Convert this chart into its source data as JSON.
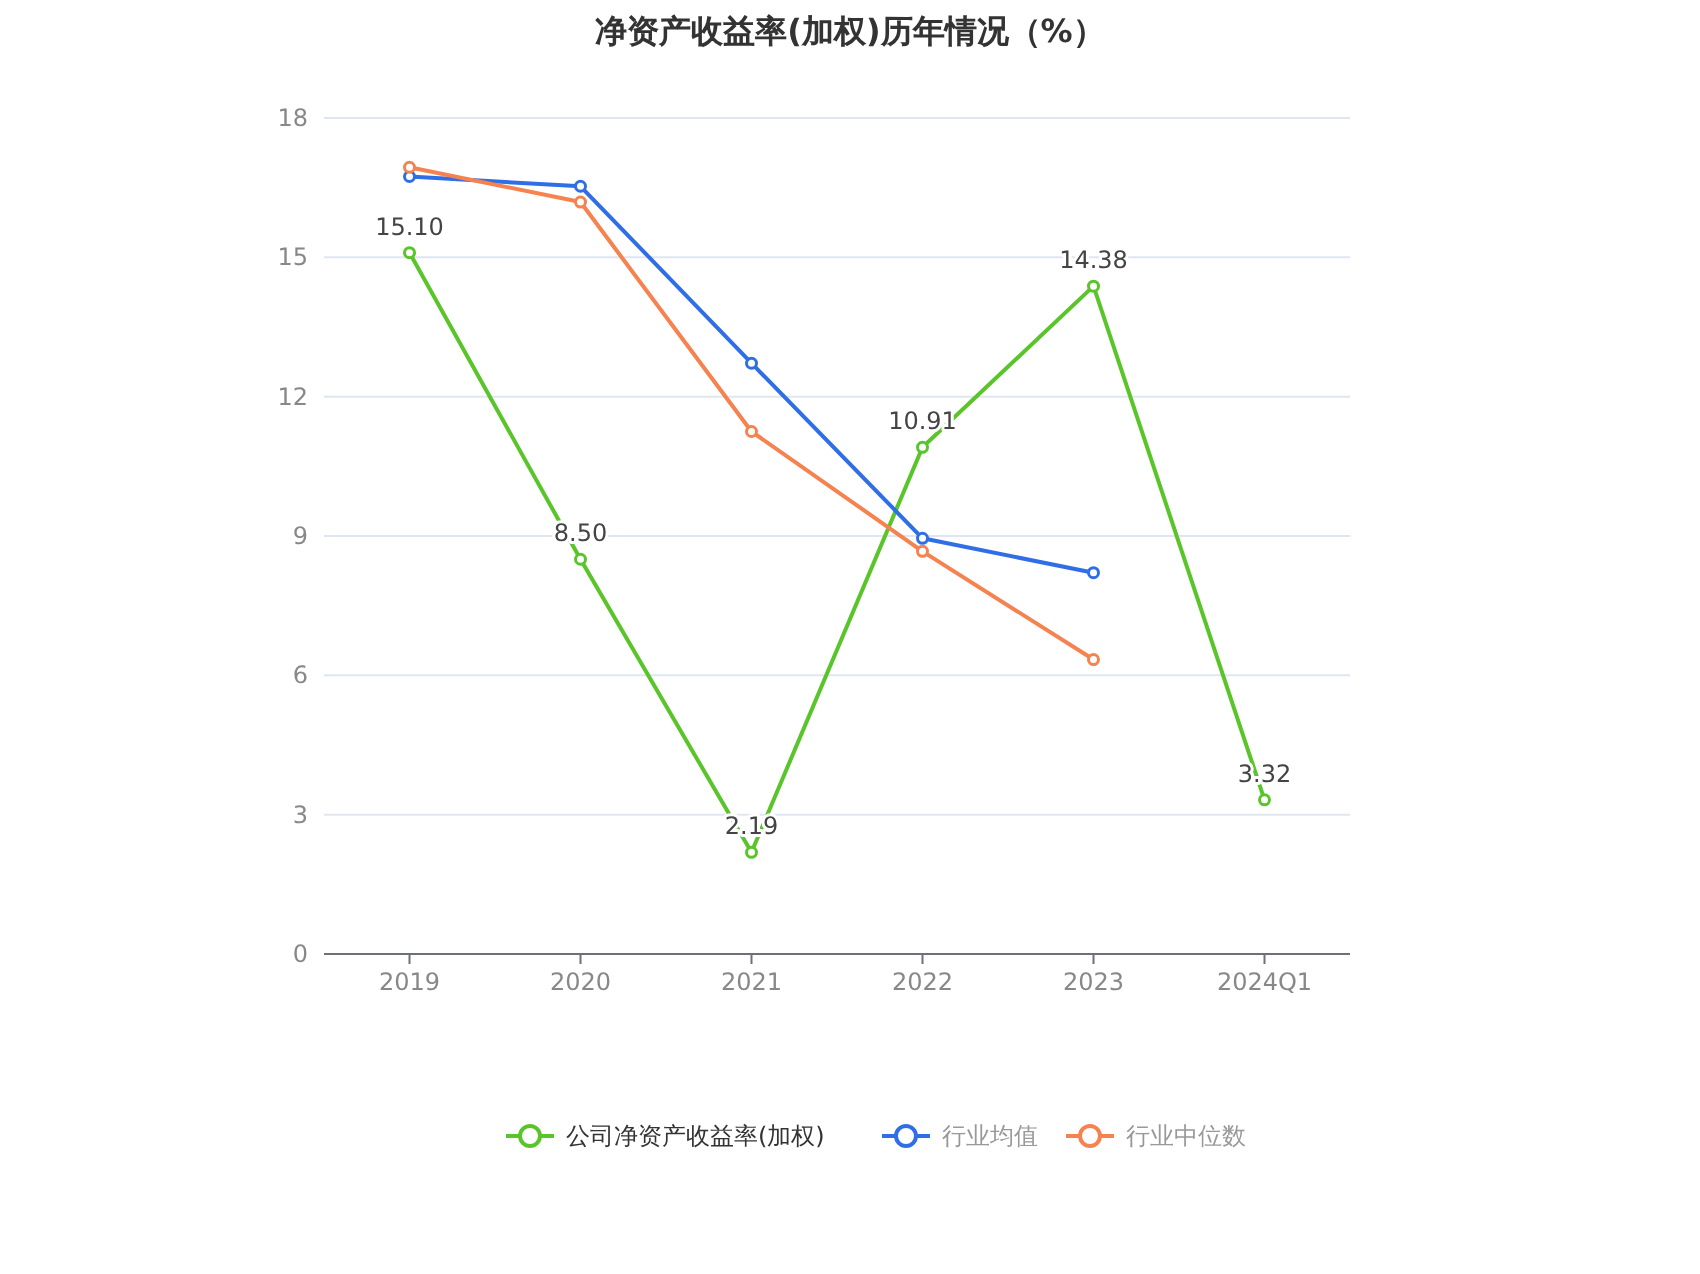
{
  "chart_data": {
    "type": "line",
    "title": "净资产收益率(加权)历年情况（%）",
    "categories": [
      "2019",
      "2020",
      "2021",
      "2022",
      "2023",
      "2024Q1"
    ],
    "series": [
      {
        "name": "公司净资产收益率(加权)",
        "color": "#5ac52a",
        "values": [
          15.1,
          8.5,
          2.19,
          10.91,
          14.38,
          3.32
        ],
        "value_labels": [
          "15.10",
          "8.50",
          "2.19",
          "10.91",
          "14.38",
          "3.32"
        ]
      },
      {
        "name": "行业均值",
        "color": "#2f6ee6",
        "values": [
          16.74,
          16.53,
          12.72,
          8.95,
          8.21,
          null
        ]
      },
      {
        "name": "行业中位数",
        "color": "#f5824f",
        "values": [
          16.94,
          16.19,
          11.25,
          8.67,
          6.34,
          null
        ]
      }
    ],
    "ylim": [
      0,
      18
    ],
    "yticks": [
      0,
      3,
      6,
      9,
      12,
      15,
      18
    ],
    "grid": "y",
    "legend": "bottom",
    "marker": "circle",
    "line_style": "solid"
  }
}
